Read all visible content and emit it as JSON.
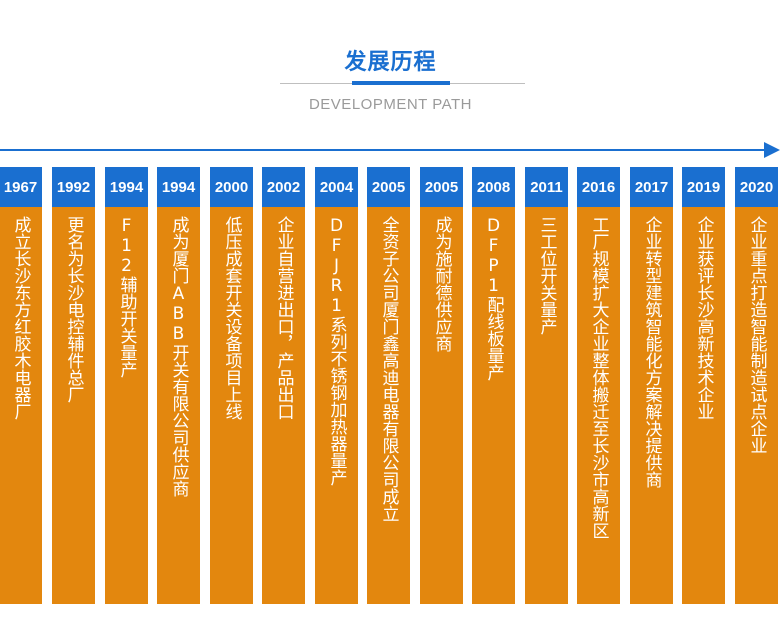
{
  "header": {
    "title": "发展历程",
    "subtitle": "DEVELOPMENT PATH"
  },
  "colors": {
    "accent_blue": "#1a6fd0",
    "card_orange": "#e3870e"
  },
  "milestones": [
    {
      "year": "1967",
      "text": "成立长沙东方红胶木电器厂"
    },
    {
      "year": "1992",
      "text": "更名为长沙电控辅件总厂"
    },
    {
      "year": "1994",
      "text": "F12辅助开关量产"
    },
    {
      "year": "1994",
      "text": "成为厦门ABB开关有限公司供应商"
    },
    {
      "year": "2000",
      "text": "低压成套开关设备项目上线"
    },
    {
      "year": "2002",
      "text": "企业自营进出口，产品出口"
    },
    {
      "year": "2004",
      "text": "DFJR1系列不锈钢加热器量产"
    },
    {
      "year": "2005",
      "text": "全资子公司厦门鑫高迪电器有限公司成立"
    },
    {
      "year": "2005",
      "text": "成为施耐德供应商"
    },
    {
      "year": "2008",
      "text": "DFP1配线板量产"
    },
    {
      "year": "2011",
      "text": "三工位开关量产"
    },
    {
      "year": "2016",
      "text": "工厂规模扩大企业整体搬迁至长沙市高新区"
    },
    {
      "year": "2017",
      "text": "企业转型建筑智能化方案解决提供商"
    },
    {
      "year": "2019",
      "text": "企业获评长沙高新技术企业"
    },
    {
      "year": "2020",
      "text": "企业重点打造智能制造试点企业"
    }
  ]
}
